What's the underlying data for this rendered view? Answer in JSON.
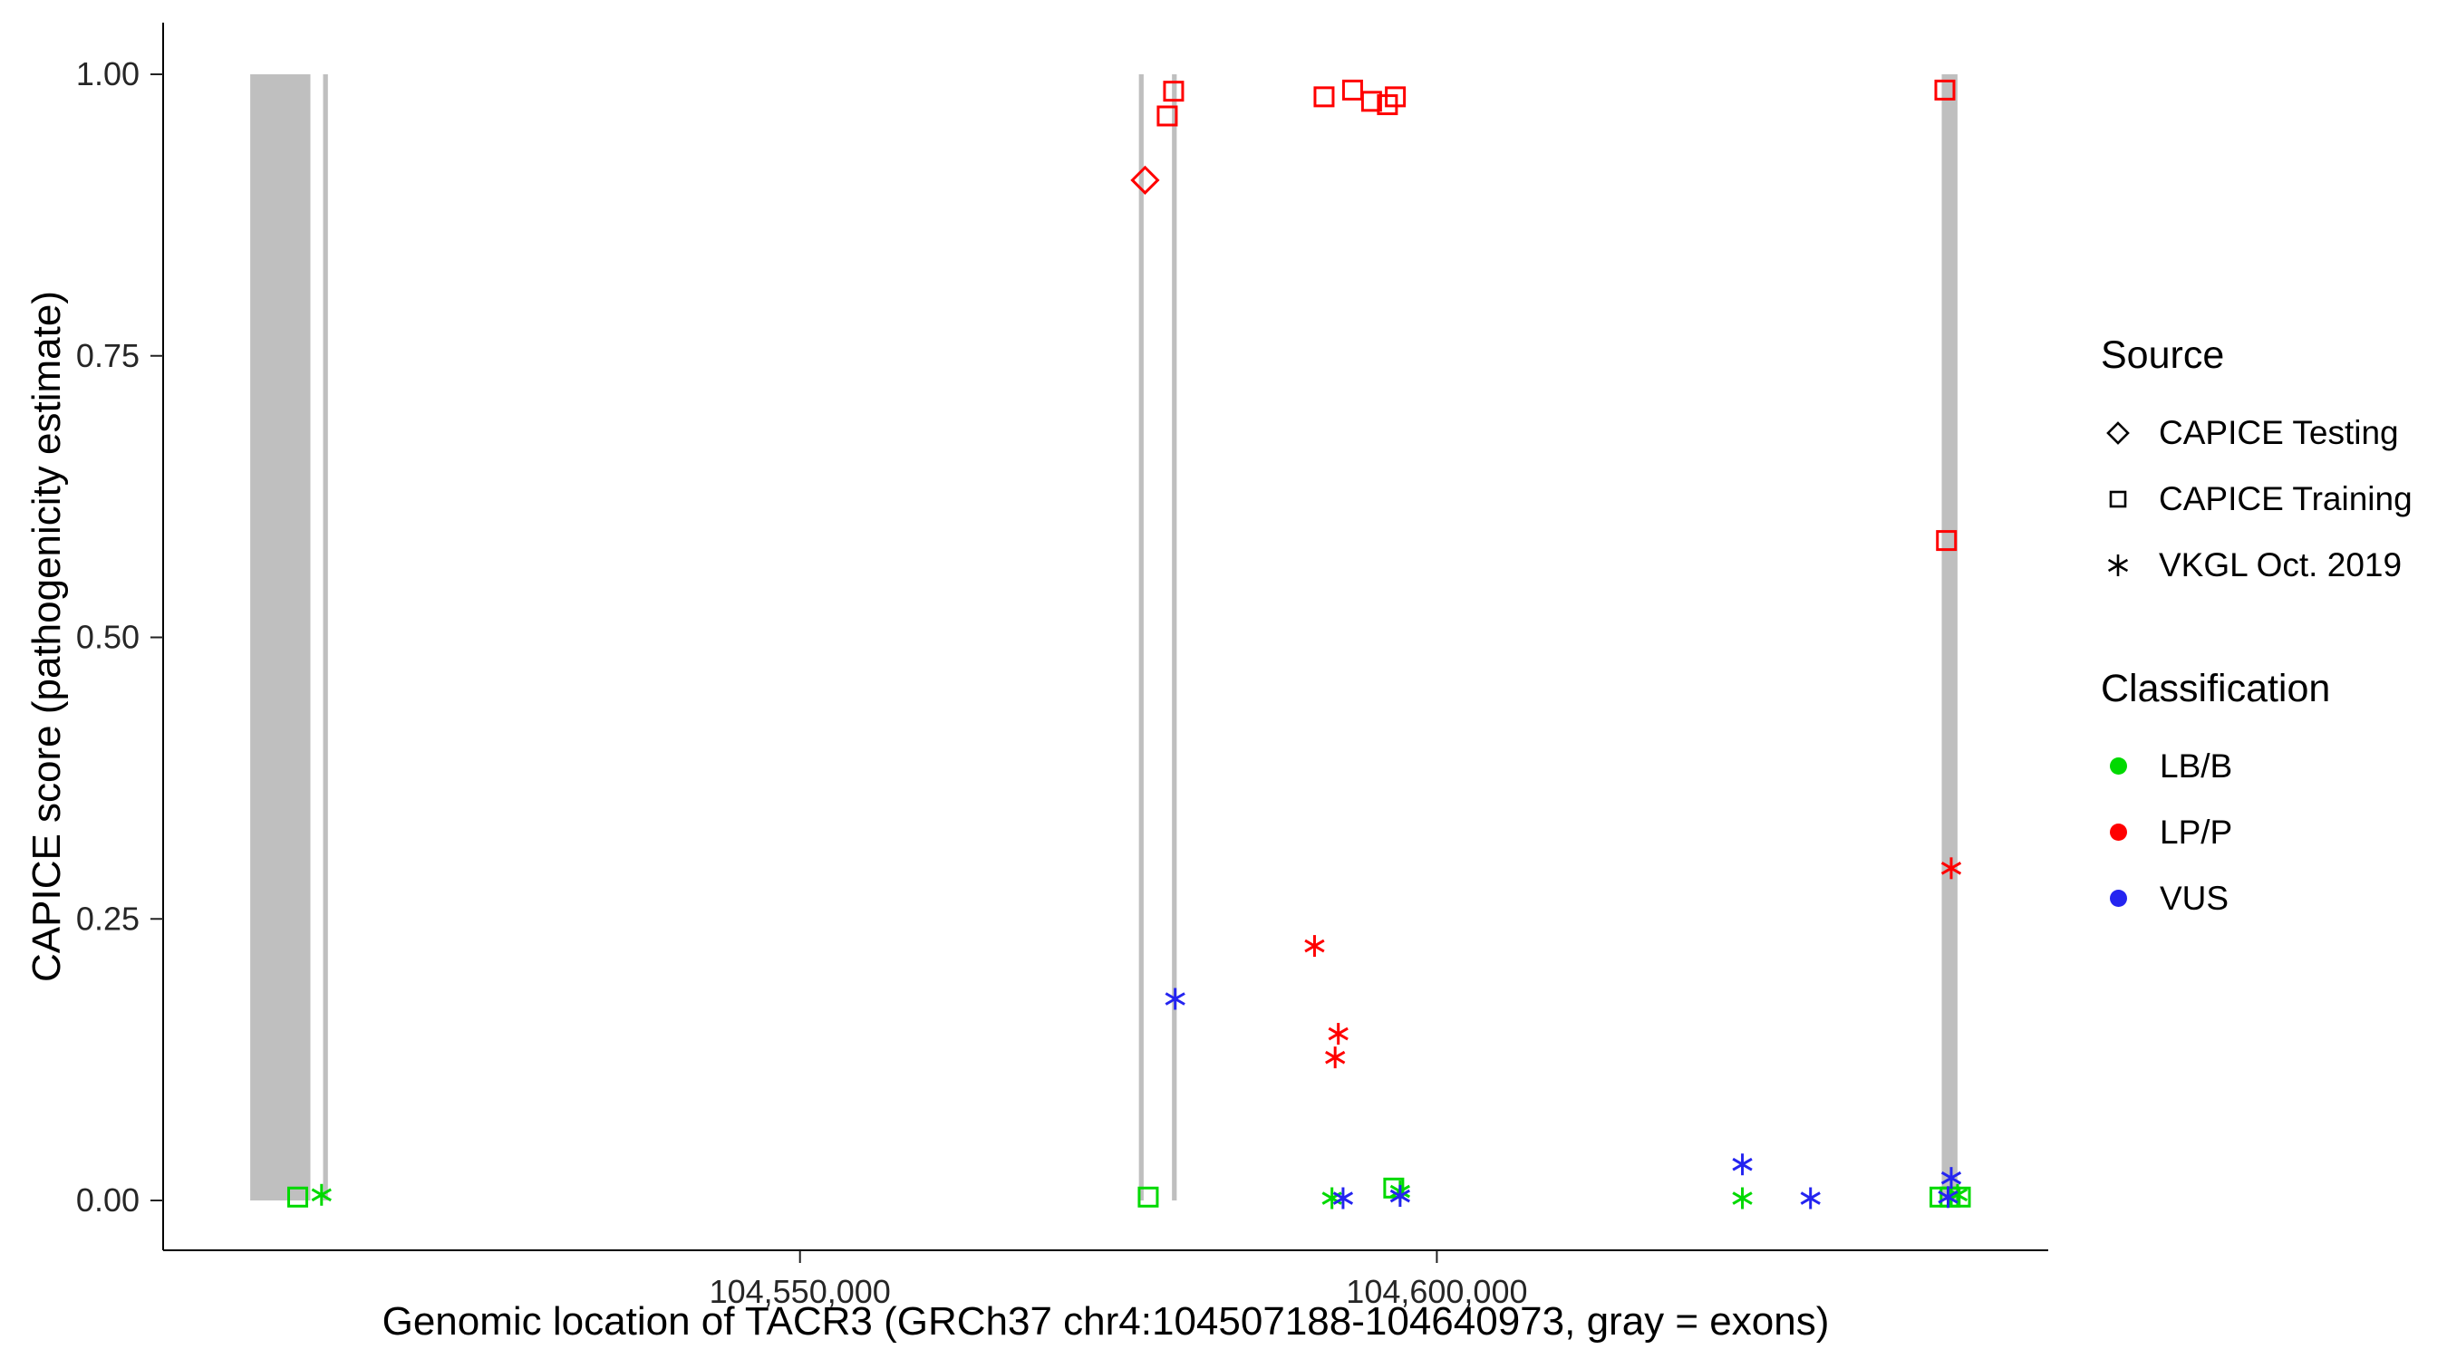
{
  "chart_data": {
    "type": "scatter",
    "title": "",
    "xlabel": "Genomic location of TACR3 (GRCh37 chr4:104507188-104640973, gray = exons)",
    "ylabel": "CAPICE score (pathogenicity estimate)",
    "x_domain": [
      104500000,
      104648000
    ],
    "y_domain": [
      0,
      1.0
    ],
    "grid": "off",
    "x_ticks": [
      {
        "value": 104550000,
        "label": "104,550,000"
      },
      {
        "value": 104600000,
        "label": "104,600,000"
      }
    ],
    "y_ticks": [
      {
        "value": 0.0,
        "label": "0.00"
      },
      {
        "value": 0.25,
        "label": "0.25"
      },
      {
        "value": 0.5,
        "label": "0.50"
      },
      {
        "value": 0.75,
        "label": "0.75"
      },
      {
        "value": 1.0,
        "label": "1.00"
      }
    ],
    "exon_color": "#BFBFBF",
    "exons": [
      {
        "start": 104506838,
        "end": 104511562
      },
      {
        "start": 104512559,
        "end": 104512936
      },
      {
        "start": 104576608,
        "end": 104576980
      },
      {
        "start": 104579204,
        "end": 104579577
      },
      {
        "start": 104639638,
        "end": 104640877
      }
    ],
    "colors": {
      "LB/B": "#00D900",
      "LP/P": "#FF0000",
      "VUS": "#2424F0"
    },
    "shapes": {
      "CAPICE Testing": "diamond",
      "CAPICE Training": "square",
      "VKGL Oct. 2019": "asterisk"
    },
    "points": [
      {
        "source": "CAPICE Training",
        "classification": "LB/B",
        "pos": 104510567,
        "score": 0.003
      },
      {
        "source": "CAPICE Training",
        "classification": "LB/B",
        "pos": 104577340,
        "score": 0.003
      },
      {
        "source": "CAPICE Training",
        "classification": "LB/B",
        "pos": 104596618,
        "score": 0.011
      },
      {
        "source": "CAPICE Training",
        "classification": "LB/B",
        "pos": 104639500,
        "score": 0.003
      },
      {
        "source": "CAPICE Training",
        "classification": "LB/B",
        "pos": 104640300,
        "score": 0.003
      },
      {
        "source": "CAPICE Training",
        "classification": "LB/B",
        "pos": 104641100,
        "score": 0.003
      },
      {
        "source": "VKGL Oct. 2019",
        "classification": "LB/B",
        "pos": 104512437,
        "score": 0.005
      },
      {
        "source": "VKGL Oct. 2019",
        "classification": "LB/B",
        "pos": 104591766,
        "score": 0.002
      },
      {
        "source": "VKGL Oct. 2019",
        "classification": "LB/B",
        "pos": 104597115,
        "score": 0.008
      },
      {
        "source": "VKGL Oct. 2019",
        "classification": "LB/B",
        "pos": 104623988,
        "score": 0.002
      },
      {
        "source": "VKGL Oct. 2019",
        "classification": "LB/B",
        "pos": 104640883,
        "score": 0.005
      },
      {
        "source": "VKGL Oct. 2019",
        "classification": "VUS",
        "pos": 104579457,
        "score": 0.179
      },
      {
        "source": "VKGL Oct. 2019",
        "classification": "VUS",
        "pos": 104592637,
        "score": 0.002
      },
      {
        "source": "VKGL Oct. 2019",
        "classification": "VUS",
        "pos": 104597115,
        "score": 0.004
      },
      {
        "source": "VKGL Oct. 2019",
        "classification": "VUS",
        "pos": 104623988,
        "score": 0.032
      },
      {
        "source": "VKGL Oct. 2019",
        "classification": "VUS",
        "pos": 104629337,
        "score": 0.002
      },
      {
        "source": "VKGL Oct. 2019",
        "classification": "VUS",
        "pos": 104640385,
        "score": 0.02
      },
      {
        "source": "VKGL Oct. 2019",
        "classification": "VUS",
        "pos": 104640136,
        "score": 0.003
      },
      {
        "source": "CAPICE Testing",
        "classification": "LP/P",
        "pos": 104577091,
        "score": 0.906
      },
      {
        "source": "CAPICE Training",
        "classification": "LP/P",
        "pos": 104578834,
        "score": 0.963
      },
      {
        "source": "CAPICE Training",
        "classification": "LP/P",
        "pos": 104579332,
        "score": 0.985
      },
      {
        "source": "CAPICE Training",
        "classification": "LP/P",
        "pos": 104591145,
        "score": 0.98
      },
      {
        "source": "CAPICE Training",
        "classification": "LP/P",
        "pos": 104593384,
        "score": 0.986
      },
      {
        "source": "CAPICE Training",
        "classification": "LP/P",
        "pos": 104594876,
        "score": 0.976
      },
      {
        "source": "CAPICE Training",
        "classification": "LP/P",
        "pos": 104596120,
        "score": 0.973
      },
      {
        "source": "CAPICE Training",
        "classification": "LP/P",
        "pos": 104596742,
        "score": 0.98
      },
      {
        "source": "CAPICE Training",
        "classification": "LP/P",
        "pos": 104639887,
        "score": 0.986
      },
      {
        "source": "CAPICE Training",
        "classification": "LP/P",
        "pos": 104640011,
        "score": 0.586
      },
      {
        "source": "VKGL Oct. 2019",
        "classification": "LP/P",
        "pos": 104590398,
        "score": 0.226
      },
      {
        "source": "VKGL Oct. 2019",
        "classification": "LP/P",
        "pos": 104592264,
        "score": 0.148
      },
      {
        "source": "VKGL Oct. 2019",
        "classification": "LP/P",
        "pos": 104592015,
        "score": 0.127
      },
      {
        "source": "VKGL Oct. 2019",
        "classification": "LP/P",
        "pos": 104640385,
        "score": 0.295
      }
    ]
  },
  "legend": {
    "source": {
      "title": "Source",
      "items": [
        {
          "label": "CAPICE Testing",
          "shape": "diamond"
        },
        {
          "label": "CAPICE Training",
          "shape": "square"
        },
        {
          "label": "VKGL Oct. 2019",
          "shape": "asterisk"
        }
      ]
    },
    "classification": {
      "title": "Classification",
      "items": [
        {
          "label": "LB/B",
          "color": "#00D900"
        },
        {
          "label": "LP/P",
          "color": "#FF0000"
        },
        {
          "label": "VUS",
          "color": "#2424F0"
        }
      ]
    }
  }
}
